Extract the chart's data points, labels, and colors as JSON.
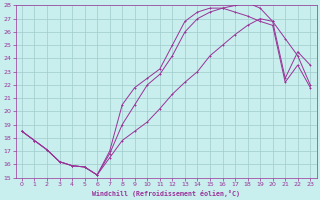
{
  "bg_color": "#c8eeed",
  "line_color": "#993399",
  "grid_color": "#a0cccc",
  "xlabel": "Windchill (Refroidissement éolien,°C)",
  "ylim": [
    15,
    28
  ],
  "xlim": [
    -0.5,
    23.5
  ],
  "yticks": [
    15,
    16,
    17,
    18,
    19,
    20,
    21,
    22,
    23,
    24,
    25,
    26,
    27,
    28
  ],
  "xticks": [
    0,
    1,
    2,
    3,
    4,
    5,
    6,
    7,
    8,
    9,
    10,
    11,
    12,
    13,
    14,
    15,
    16,
    17,
    18,
    19,
    20,
    21,
    22,
    23
  ],
  "line1_x": [
    0,
    1,
    2,
    3,
    4,
    5,
    6,
    7,
    8,
    9,
    10,
    11,
    12,
    13,
    14,
    15,
    16,
    17,
    18,
    19,
    20,
    21,
    22,
    23
  ],
  "line1_y": [
    18.5,
    17.8,
    17.1,
    16.2,
    15.9,
    15.8,
    15.2,
    16.5,
    17.8,
    18.5,
    19.2,
    20.2,
    21.3,
    22.2,
    23.0,
    24.2,
    25.0,
    25.8,
    26.5,
    27.0,
    26.8,
    25.5,
    24.2,
    22.0
  ],
  "line2_x": [
    0,
    1,
    2,
    3,
    4,
    5,
    6,
    7,
    8,
    9,
    10,
    11,
    12,
    13,
    14,
    15,
    16,
    17,
    18,
    19,
    20,
    21,
    22,
    23
  ],
  "line2_y": [
    18.5,
    17.8,
    17.1,
    16.2,
    15.9,
    15.8,
    15.2,
    17.0,
    20.5,
    21.8,
    22.5,
    23.2,
    25.0,
    26.8,
    27.5,
    27.8,
    27.8,
    27.5,
    27.2,
    26.8,
    26.5,
    22.2,
    23.5,
    21.8
  ],
  "line3_x": [
    0,
    1,
    2,
    3,
    4,
    5,
    6,
    7,
    8,
    9,
    10,
    11,
    12,
    13,
    14,
    15,
    16,
    17,
    18,
    19,
    20,
    21,
    22,
    23
  ],
  "line3_y": [
    18.5,
    17.8,
    17.1,
    16.2,
    15.9,
    15.8,
    15.2,
    16.8,
    19.0,
    20.5,
    22.0,
    22.8,
    24.2,
    26.0,
    27.0,
    27.5,
    27.8,
    28.0,
    28.2,
    27.8,
    26.8,
    22.5,
    24.5,
    23.5
  ]
}
